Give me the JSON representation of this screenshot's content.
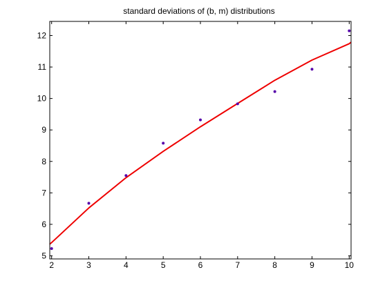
{
  "chart_data": {
    "type": "scatter",
    "title": "standard deviations of (b, m) distributions",
    "xlabel": "",
    "ylabel": "",
    "xlim": [
      1.95,
      10.05
    ],
    "ylim": [
      4.9,
      12.45
    ],
    "x_ticks": [
      2,
      3,
      4,
      5,
      6,
      7,
      8,
      9,
      10
    ],
    "y_ticks": [
      5,
      6,
      7,
      8,
      9,
      10,
      11,
      12
    ],
    "x_tick_labels": [
      "2",
      "3",
      "4",
      "5",
      "6",
      "7",
      "8",
      "9",
      "10"
    ],
    "y_tick_labels": [
      "5",
      "6",
      "7",
      "8",
      "9",
      "10",
      "11",
      "12"
    ],
    "grid": false,
    "colors": {
      "points": "#5500aa",
      "fit_line": "#ee0000",
      "axes": "#000000",
      "background": "#ffffff"
    },
    "series": [
      {
        "kind": "points",
        "x": [
          2,
          3,
          4,
          5,
          6,
          7,
          8,
          9,
          10
        ],
        "y": [
          5.23,
          6.67,
          7.55,
          8.58,
          9.32,
          9.83,
          10.22,
          10.93,
          12.15
        ]
      },
      {
        "kind": "line",
        "x": [
          1.95,
          2,
          3,
          4,
          5,
          6,
          7,
          8,
          9,
          10,
          10.05
        ],
        "y": [
          5.37,
          5.42,
          6.52,
          7.48,
          8.32,
          9.1,
          9.84,
          10.58,
          11.22,
          11.74,
          11.79
        ]
      }
    ]
  }
}
